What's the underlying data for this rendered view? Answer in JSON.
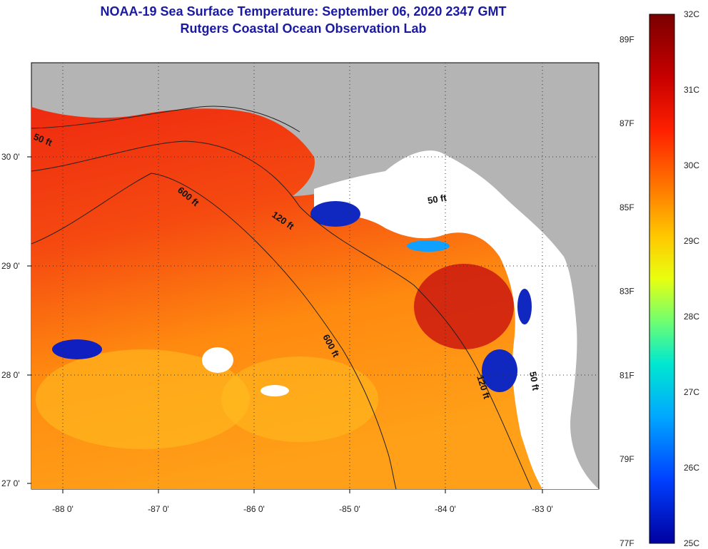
{
  "title": {
    "line1": "NOAA-19 Sea Surface Temperature:  September 06, 2020 2347 GMT",
    "line2": "Rutgers Coastal Ocean Observation Lab"
  },
  "map": {
    "lat_ticks": [
      "30 0'",
      "29 0'",
      "28 0'",
      "27 0'"
    ],
    "lon_ticks": [
      "-88 0'",
      "-87 0'",
      "-86 0'",
      "-85 0'",
      "-84 0'",
      "-83 0'"
    ],
    "contour_labels": [
      "50 ft",
      "600 ft",
      "120 ft",
      "50 ft",
      "600 ft",
      "120 ft",
      "50 ft"
    ]
  },
  "colorbar": {
    "celsius": [
      "32C",
      "31C",
      "30C",
      "29C",
      "28C",
      "27C",
      "26C",
      "25C"
    ],
    "fahrenheit": [
      "89F",
      "87F",
      "85F",
      "83F",
      "81F",
      "79F",
      "77F"
    ],
    "colors": [
      "#7a0000",
      "#d40000",
      "#ff3000",
      "#ff8a00",
      "#ffd000",
      "#e8ff10",
      "#70ff80",
      "#00e0e0",
      "#00a0ff",
      "#0040ff",
      "#0000b0"
    ]
  }
}
